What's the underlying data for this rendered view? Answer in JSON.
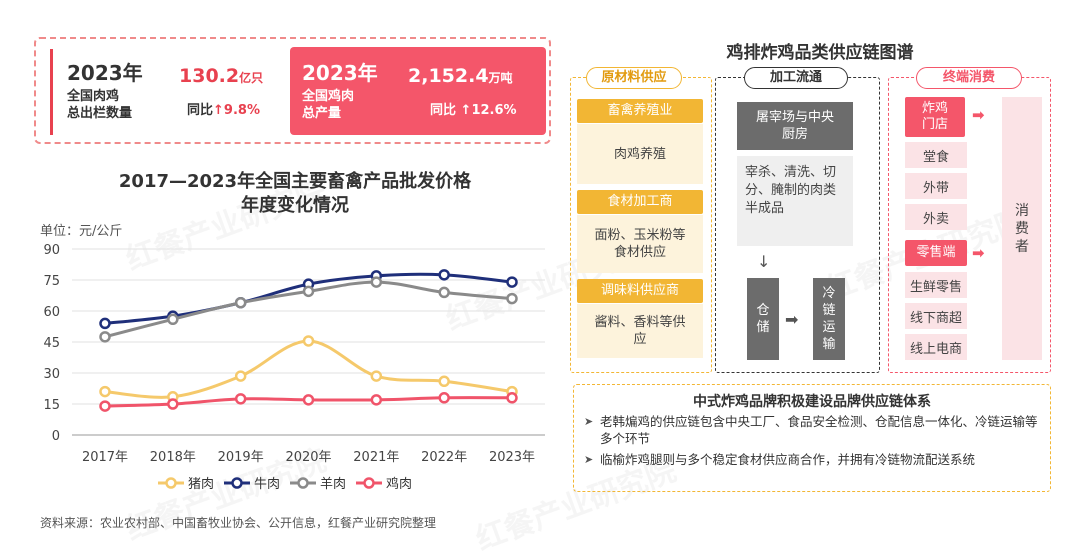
{
  "watermark": "红餐产业研究院",
  "stats": {
    "left": {
      "year": "2023年",
      "line1": "全国肉鸡",
      "line2": "总出栏数量",
      "value": "130.2",
      "unit": "亿只",
      "yoy_label": "同比",
      "yoy": "↑9.8%"
    },
    "right": {
      "year": "2023年",
      "line1": "全国鸡肉",
      "line2": "总产量",
      "value": "2,152.4",
      "unit": "万吨",
      "yoy_label": "同比",
      "yoy": "↑12.6%"
    }
  },
  "chart_title_1": "2017—2023年全国主要畜禽产品批发价格",
  "chart_title_2": "年度变化情况",
  "chart_unit": "单位：元/公斤",
  "chart_data": {
    "type": "line",
    "title": "2017—2023年全国主要畜禽产品批发价格年度变化情况",
    "ylabel": "元/公斤",
    "ylim": [
      0,
      90
    ],
    "yticks": [
      0,
      15,
      30,
      45,
      60,
      75,
      90
    ],
    "categories": [
      "2017年",
      "2018年",
      "2019年",
      "2020年",
      "2021年",
      "2022年",
      "2023年"
    ],
    "series": [
      {
        "name": "猪肉",
        "color": "#f5c96b",
        "values": [
          21,
          18.5,
          28.5,
          45.5,
          28.5,
          26,
          21
        ]
      },
      {
        "name": "牛肉",
        "color": "#1f2f7a",
        "values": [
          54,
          57.5,
          64,
          73,
          77,
          77.5,
          74
        ]
      },
      {
        "name": "羊肉",
        "color": "#8a8a8a",
        "values": [
          47.5,
          56,
          64,
          69.5,
          74,
          69,
          66
        ]
      },
      {
        "name": "鸡肉",
        "color": "#f0546a",
        "values": [
          14,
          15,
          17.5,
          17,
          17,
          18,
          18
        ]
      }
    ],
    "legend": "bottom"
  },
  "source": "资料来源：农业农村部、中国畜牧业协会、公开信息，红餐产业研究院整理",
  "diagram": {
    "title": "鸡排炸鸡品类供应链图谱",
    "col1": {
      "head": "原材料供应",
      "groups": [
        {
          "tag": "畜禽养殖业",
          "body": "肉鸡养殖"
        },
        {
          "tag": "食材加工商",
          "body": "面粉、玉米粉等食材供应"
        },
        {
          "tag": "调味料供应商",
          "body": "酱料、香料等供应"
        }
      ]
    },
    "col2": {
      "head": "加工流通",
      "top": "屠宰场与中央厨房",
      "mid": "宰杀、清洗、切分、腌制的肉类半成品",
      "store": "仓储",
      "cold": "冷链运输"
    },
    "col3": {
      "head": "终端消费",
      "tag1": "炸鸡门店",
      "items1": [
        "堂食",
        "外带",
        "外卖"
      ],
      "tag2": "零售端",
      "items2": [
        "生鲜零售",
        "线下商超",
        "线上电商"
      ],
      "consumer": "消费者"
    },
    "bottom": {
      "title": "中式炸鸡品牌积极建设品牌供应链体系",
      "items": [
        "老韩煸鸡的供应链包含中央工厂、食品安全检测、仓配信息一体化、冷链运输等多个环节",
        "临榆炸鸡腿则与多个稳定食材供应商合作，并拥有冷链物流配送系统"
      ]
    }
  }
}
